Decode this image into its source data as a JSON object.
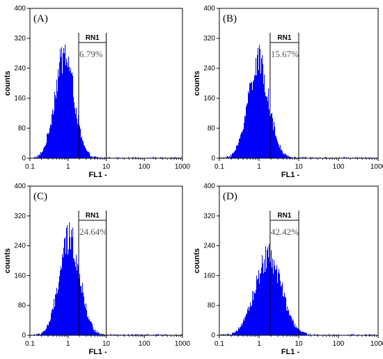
{
  "chart_data": [
    {
      "type": "histogram",
      "panel_label": "(A)",
      "xlabel": "FL1 -",
      "ylabel": "counts",
      "x_scale": "log",
      "xlim": [
        0.1,
        1000
      ],
      "ylim": [
        0,
        400
      ],
      "x_ticks": [
        "0.1",
        "1",
        "10",
        "100",
        "1000"
      ],
      "y_ticks": [
        "0",
        "80",
        "160",
        "240",
        "320",
        "400"
      ],
      "series": [
        {
          "peak_x": 0.8,
          "peak_counts": 275,
          "spread_log10": 0.25
        }
      ],
      "gate": {
        "name": "RN1",
        "x_start": 1.9,
        "x_end": 10,
        "percent": "6.79%"
      },
      "color": "#0000ff"
    },
    {
      "type": "histogram",
      "panel_label": "(B)",
      "xlabel": "FL1 -",
      "ylabel": "counts",
      "x_scale": "log",
      "xlim": [
        0.1,
        1000
      ],
      "ylim": [
        0,
        400
      ],
      "x_ticks": [
        "0.1",
        "1",
        "10",
        "100",
        "1000"
      ],
      "y_ticks": [
        "0",
        "80",
        "160",
        "240",
        "320",
        "400"
      ],
      "series": [
        {
          "peak_x": 0.95,
          "peak_counts": 255,
          "spread_log10": 0.26
        }
      ],
      "gate": {
        "name": "RN1",
        "x_start": 1.9,
        "x_end": 10,
        "percent": "15.67%"
      },
      "color": "#0000ff"
    },
    {
      "type": "histogram",
      "panel_label": "(C)",
      "xlabel": "FL1 -",
      "ylabel": "counts",
      "x_scale": "log",
      "xlim": [
        0.1,
        1000
      ],
      "ylim": [
        0,
        400
      ],
      "x_ticks": [
        "0.1",
        "1",
        "10",
        "100",
        "1000"
      ],
      "y_ticks": [
        "0",
        "80",
        "160",
        "240",
        "320",
        "400"
      ],
      "series": [
        {
          "peak_x": 1.1,
          "peak_counts": 258,
          "spread_log10": 0.27
        }
      ],
      "gate": {
        "name": "RN1",
        "x_start": 1.9,
        "x_end": 10,
        "percent": "24.64%"
      },
      "color": "#0000ff"
    },
    {
      "type": "histogram",
      "panel_label": "(D)",
      "xlabel": "FL1 -",
      "ylabel": "counts",
      "x_scale": "log",
      "xlim": [
        0.1,
        1000
      ],
      "ylim": [
        0,
        400
      ],
      "x_ticks": [
        "0.1",
        "1",
        "10",
        "100",
        "1000"
      ],
      "y_ticks": [
        "0",
        "80",
        "160",
        "240",
        "320",
        "400"
      ],
      "series": [
        {
          "peak_x": 1.7,
          "peak_counts": 210,
          "spread_log10": 0.33
        }
      ],
      "gate": {
        "name": "RN1",
        "x_start": 1.9,
        "x_end": 10,
        "percent": "42.42%"
      },
      "color": "#0000ff"
    }
  ]
}
